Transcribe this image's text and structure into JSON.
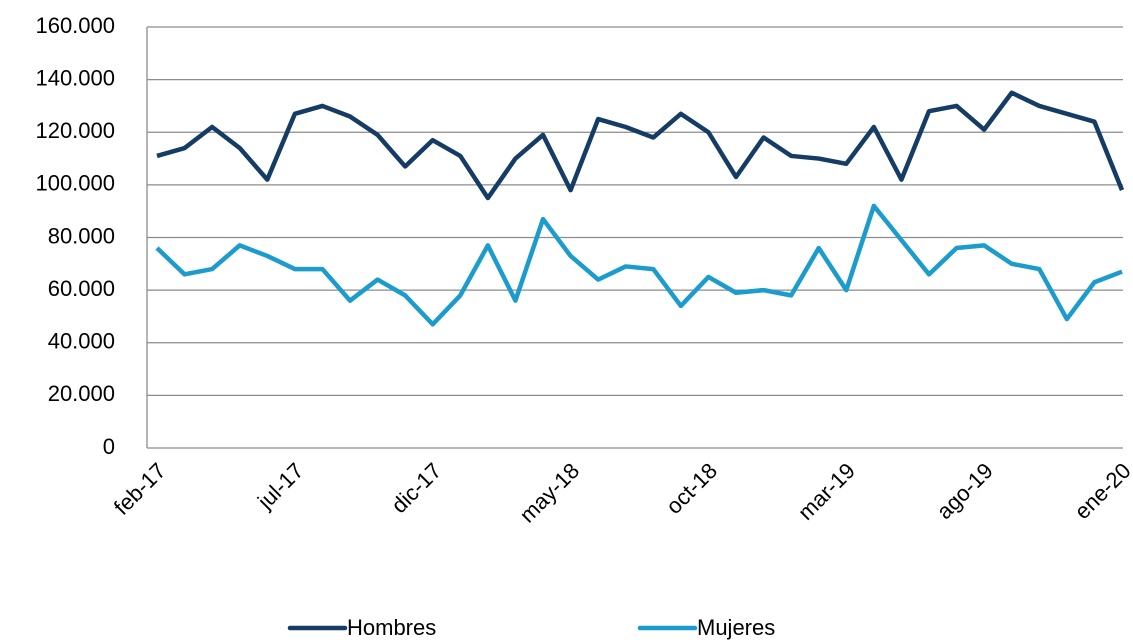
{
  "chart_data": {
    "type": "line",
    "categories": [
      "feb-17",
      null,
      null,
      null,
      null,
      "jul-17",
      null,
      null,
      null,
      null,
      "dic-17",
      null,
      null,
      null,
      null,
      "may-18",
      null,
      null,
      null,
      null,
      "oct-18",
      null,
      null,
      null,
      null,
      "mar-19",
      null,
      null,
      null,
      null,
      "ago-19",
      null,
      null,
      null,
      null,
      "ene-20"
    ],
    "series": [
      {
        "name": "Hombres",
        "color": "#143c64",
        "values": [
          111000,
          114000,
          122000,
          114000,
          102000,
          127000,
          130000,
          126000,
          119000,
          107000,
          117000,
          111000,
          95000,
          110000,
          119000,
          98000,
          125000,
          122000,
          118000,
          127000,
          120000,
          103000,
          118000,
          111000,
          110000,
          108000,
          122000,
          102000,
          128000,
          130000,
          121000,
          135000,
          130000,
          127000,
          124000,
          98000
        ]
      },
      {
        "name": "Mujeres",
        "color": "#1b9ccc",
        "values": [
          76000,
          66000,
          68000,
          77000,
          73000,
          68000,
          68000,
          56000,
          64000,
          58000,
          47000,
          58000,
          77000,
          56000,
          87000,
          73000,
          64000,
          69000,
          68000,
          54000,
          65000,
          59000,
          60000,
          58000,
          76000,
          60000,
          92000,
          79000,
          66000,
          76000,
          77000,
          70000,
          68000,
          49000,
          63000,
          67000
        ]
      }
    ],
    "ylim": [
      0,
      160000
    ],
    "yticks": [
      0,
      {
        "value": 20000,
        "label": "20.000"
      },
      {
        "value": 40000,
        "label": "40.000"
      },
      {
        "value": 60000,
        "label": "60.000"
      },
      {
        "value": 80000,
        "label": "80.000"
      },
      {
        "value": 100000,
        "label": "100.000"
      },
      {
        "value": 120000,
        "label": "120.000"
      },
      {
        "value": 140000,
        "label": "140.000"
      },
      {
        "value": 160000,
        "label": "160.000"
      }
    ],
    "grid": true,
    "legend": "bottom"
  }
}
